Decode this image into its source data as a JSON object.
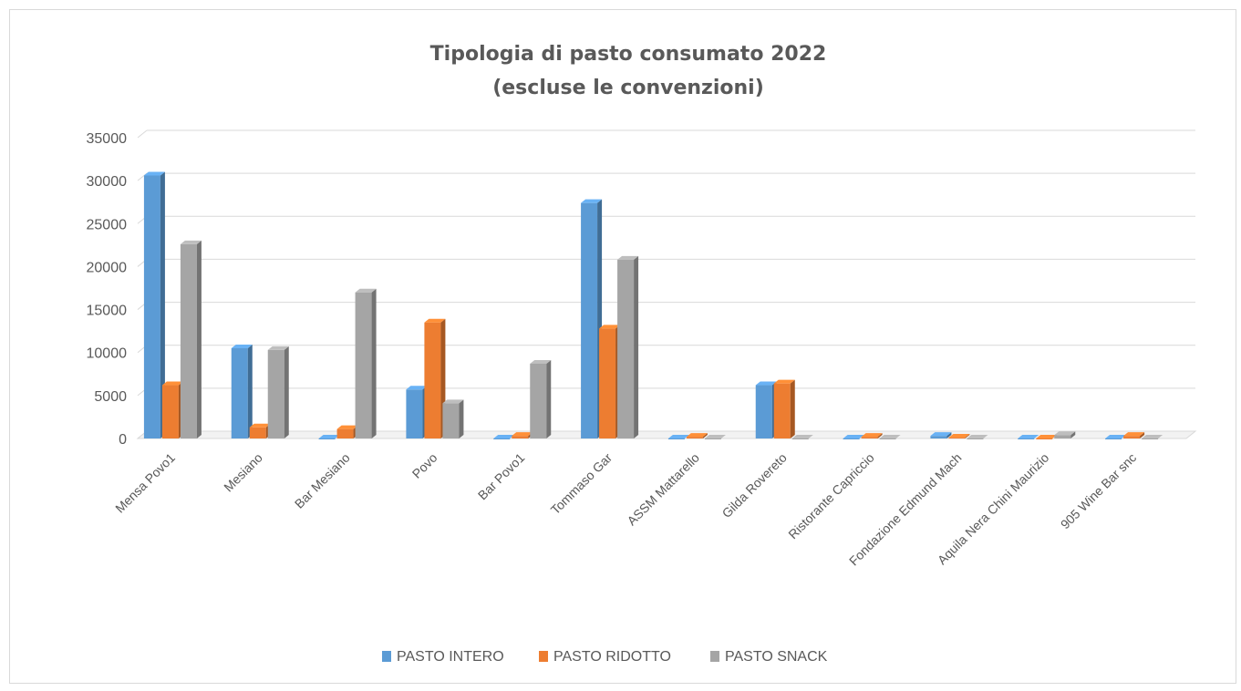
{
  "chart_data": {
    "type": "bar",
    "title": "Tipologia di pasto consumato 2022",
    "subtitle": "(escluse le convenzioni)",
    "categories": [
      "Mensa Povo1",
      "Mesiano",
      "Bar Mesiano",
      "Povo",
      "Bar Povo1",
      "Tommaso Gar",
      "ASSM Mattarello",
      "Gilda Rovereto",
      "Ristorante Capriccio",
      "Fondazione  Edmund Mach",
      "Aquila Nera Chini Maurizio",
      "905 Wine Bar snc"
    ],
    "series": [
      {
        "name": "PASTO INTERO",
        "color": "#5b9bd5",
        "values": [
          30600,
          10500,
          0,
          5700,
          0,
          27400,
          0,
          6200,
          0,
          300,
          0,
          0
        ]
      },
      {
        "name": "PASTO RIDOTTO",
        "color": "#ed7d31",
        "values": [
          6200,
          1300,
          1100,
          13500,
          300,
          12800,
          200,
          6400,
          200,
          100,
          0,
          300
        ]
      },
      {
        "name": "PASTO SNACK",
        "color": "#a5a5a5",
        "values": [
          22600,
          10300,
          17000,
          4100,
          8700,
          20800,
          0,
          0,
          0,
          0,
          400,
          0
        ]
      }
    ],
    "ylim": [
      0,
      35000
    ],
    "yticks": [
      0,
      5000,
      10000,
      15000,
      20000,
      25000,
      30000,
      35000
    ],
    "grid": true,
    "legend_position": "bottom",
    "style": "3d-clustered-column"
  }
}
